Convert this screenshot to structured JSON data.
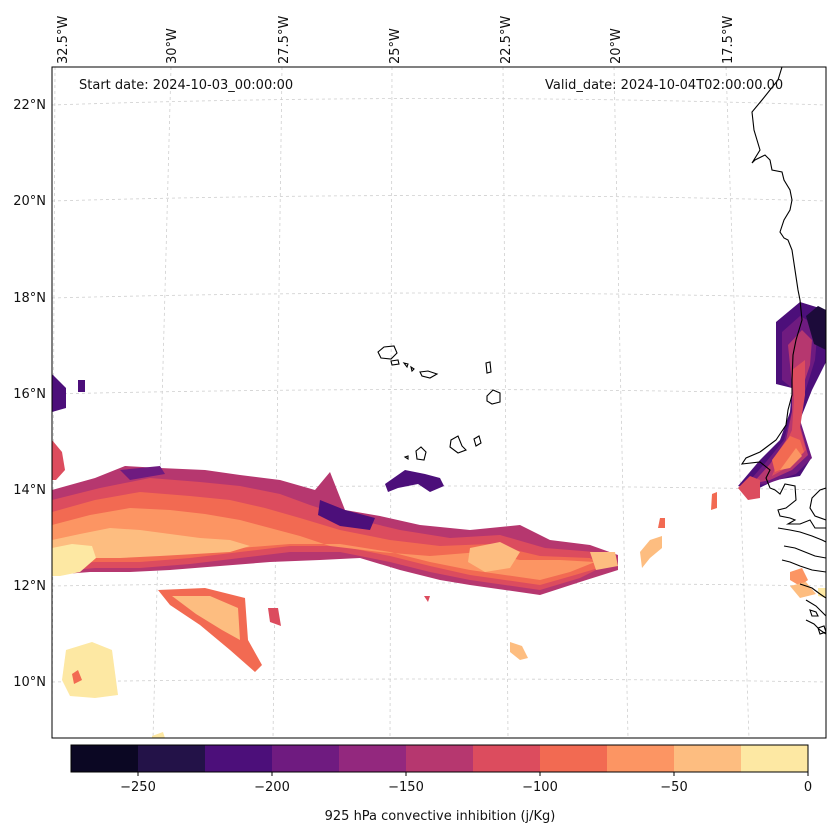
{
  "map": {
    "annotations": {
      "start": "Start date: 2024-10-03_00:00:00",
      "valid": "Valid_date: 2024-10-04T02:00:00.00"
    },
    "lon_labels": [
      "32.5°W",
      "30°W",
      "27.5°W",
      "25°W",
      "22.5°W",
      "20°W",
      "17.5°W"
    ],
    "lat_labels": [
      "22°N",
      "20°N",
      "18°N",
      "16°N",
      "14°N",
      "12°N",
      "10°N"
    ]
  },
  "colorbar": {
    "title": "925 hPa convective inhibition (j/Kg)",
    "tick_labels": [
      "−250",
      "−200",
      "−150",
      "−100",
      "−50",
      "0"
    ],
    "colors": [
      "#0b0723",
      "#231248",
      "#4c0f7a",
      "#6f1b80",
      "#93287e",
      "#b6376f",
      "#dc4c5e",
      "#f26a52",
      "#fc9563",
      "#fdbd80",
      "#fde8a3"
    ]
  }
}
